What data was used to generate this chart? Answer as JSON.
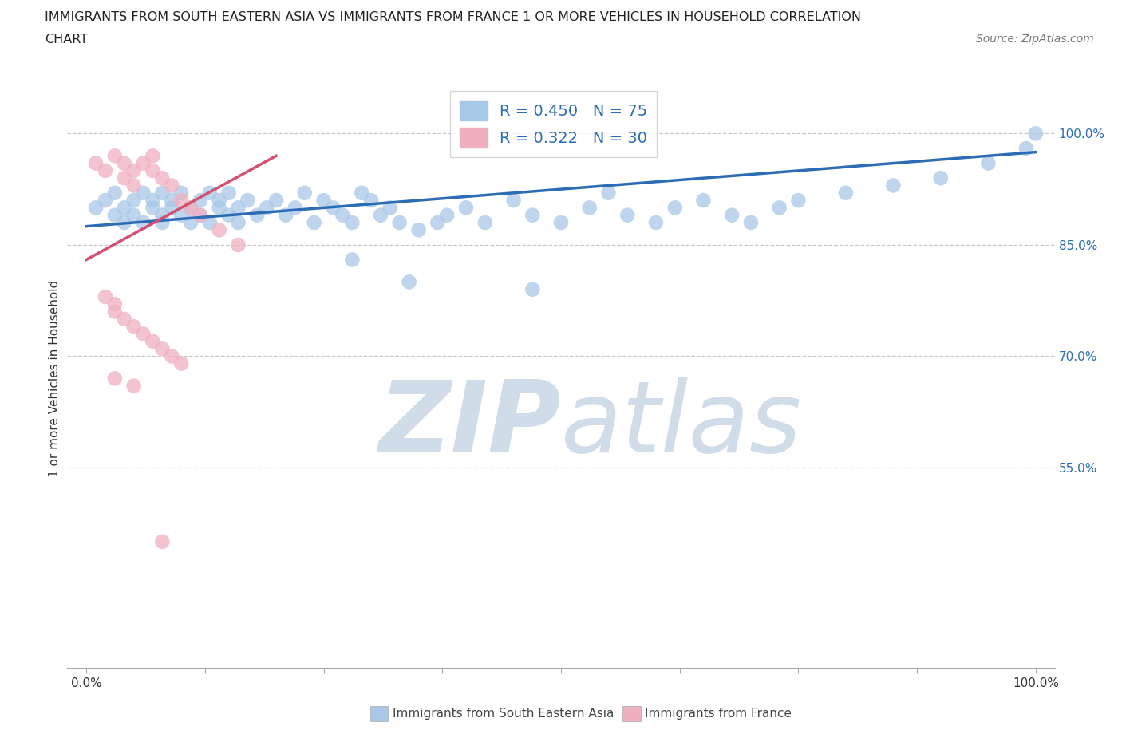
{
  "title_line1": "IMMIGRANTS FROM SOUTH EASTERN ASIA VS IMMIGRANTS FROM FRANCE 1 OR MORE VEHICLES IN HOUSEHOLD CORRELATION",
  "title_line2": "CHART",
  "source_text": "Source: ZipAtlas.com",
  "ylabel": "1 or more Vehicles in Household",
  "xlim": [
    -2.0,
    102.0
  ],
  "ylim": [
    28.0,
    106.0
  ],
  "yticks": [
    55.0,
    70.0,
    85.0,
    100.0
  ],
  "xticks": [
    0.0,
    12.5,
    25.0,
    37.5,
    50.0,
    62.5,
    75.0,
    87.5,
    100.0
  ],
  "xtick_labels": [
    "0.0%",
    "",
    "",
    "",
    "",
    "",
    "",
    "",
    "100.0%"
  ],
  "grid_color": "#c8c8c8",
  "watermark_zip": "ZIP",
  "watermark_atlas": "atlas",
  "watermark_color": "#d0dce8",
  "blue_scatter_x": [
    1,
    2,
    3,
    3,
    4,
    4,
    5,
    5,
    6,
    6,
    7,
    7,
    8,
    8,
    8,
    9,
    9,
    10,
    10,
    11,
    11,
    12,
    12,
    13,
    13,
    14,
    14,
    15,
    15,
    16,
    16,
    17,
    18,
    19,
    20,
    21,
    22,
    23,
    24,
    25,
    26,
    27,
    28,
    29,
    30,
    31,
    32,
    33,
    35,
    37,
    38,
    40,
    42,
    45,
    47,
    50,
    53,
    55,
    57,
    60,
    62,
    65,
    68,
    70,
    73,
    75,
    80,
    85,
    90,
    95,
    99,
    100,
    28,
    34,
    47
  ],
  "blue_scatter_y": [
    90,
    91,
    89,
    92,
    88,
    90,
    91,
    89,
    92,
    88,
    91,
    90,
    89,
    92,
    88,
    90,
    91,
    89,
    92,
    88,
    90,
    91,
    89,
    92,
    88,
    90,
    91,
    89,
    92,
    88,
    90,
    91,
    89,
    90,
    91,
    89,
    90,
    92,
    88,
    91,
    90,
    89,
    88,
    92,
    91,
    89,
    90,
    88,
    87,
    88,
    89,
    90,
    88,
    91,
    89,
    88,
    90,
    92,
    89,
    88,
    90,
    91,
    89,
    88,
    90,
    91,
    92,
    93,
    94,
    96,
    98,
    100,
    83,
    80,
    79
  ],
  "pink_scatter_x": [
    1,
    2,
    3,
    4,
    4,
    5,
    5,
    6,
    7,
    7,
    8,
    9,
    10,
    11,
    12,
    14,
    16,
    2,
    3,
    3,
    4,
    5,
    6,
    7,
    8,
    9,
    10,
    3,
    5,
    8
  ],
  "pink_scatter_y": [
    96,
    95,
    97,
    96,
    94,
    95,
    93,
    96,
    97,
    95,
    94,
    93,
    91,
    90,
    89,
    87,
    85,
    78,
    77,
    76,
    75,
    74,
    73,
    72,
    71,
    70,
    69,
    67,
    66,
    45
  ],
  "blue_line_x": [
    0,
    100
  ],
  "blue_line_y": [
    87.5,
    97.5
  ],
  "pink_line_x": [
    0,
    20
  ],
  "pink_line_y": [
    83,
    97
  ],
  "blue_line_color": "#2b6cb5",
  "pink_line_color": "#d45070",
  "blue_scatter_color": "#a8c8e8",
  "pink_scatter_color": "#f0b0c0",
  "title_fontsize": 11.5,
  "axis_label_fontsize": 11,
  "tick_fontsize": 11,
  "legend_fontsize": 14,
  "source_fontsize": 10,
  "legend_r_color": "#2b6cb5",
  "legend_entries": [
    {
      "label_r": "R = 0.450",
      "label_n": "N = 75",
      "color": "#a8c8e8"
    },
    {
      "label_r": "R = 0.322",
      "label_n": "N = 30",
      "color": "#f0b0c0"
    }
  ],
  "footer_labels": [
    "Immigrants from South Eastern Asia",
    "Immigrants from France"
  ],
  "footer_colors": [
    "#a8c8e8",
    "#f0b0c0"
  ]
}
